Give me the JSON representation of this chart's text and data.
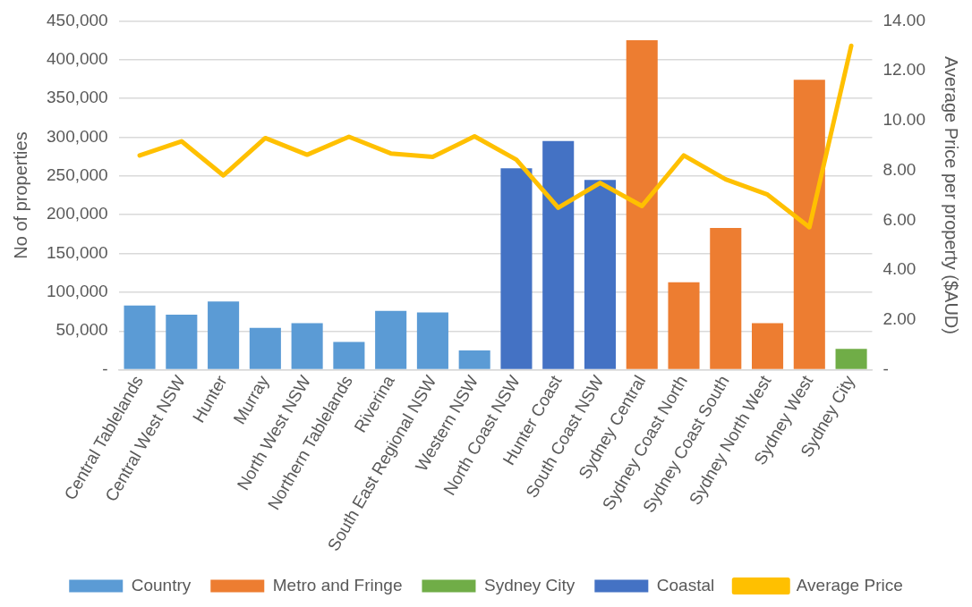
{
  "chart_data": {
    "type": "bar",
    "ylabel": "No of properties",
    "y2label": "Average Price per property ($AUD)",
    "categories": [
      "Central Tablelands",
      "Central West NSW",
      "Hunter",
      "Murray",
      "North West NSW",
      "Northern Tablelands",
      "Riverina",
      "South East Regional NSW",
      "Western NSW",
      "North Coast NSW",
      "Hunter Coast",
      "South Coast NSW",
      "Sydney Central",
      "Sydney Coast North",
      "Sydney Coast South",
      "Sydney North West",
      "Sydney West",
      "Sydney City"
    ],
    "series": [
      {
        "name": "Country",
        "color": "#5b9bd5",
        "values": [
          83000,
          71000,
          88000,
          54000,
          60000,
          36000,
          76000,
          74000,
          25000,
          null,
          null,
          null,
          null,
          null,
          null,
          null,
          null,
          null
        ]
      },
      {
        "name": "Metro and Fringe",
        "color": "#ed7d31",
        "values": [
          null,
          null,
          null,
          null,
          null,
          null,
          null,
          null,
          null,
          null,
          null,
          null,
          425000,
          113000,
          183000,
          60000,
          374000,
          null
        ]
      },
      {
        "name": "Sydney City",
        "color": "#70ad47",
        "values": [
          null,
          null,
          null,
          null,
          null,
          null,
          null,
          null,
          null,
          null,
          null,
          null,
          null,
          null,
          null,
          null,
          null,
          27000
        ]
      },
      {
        "name": "Coastal",
        "color": "#4472c4",
        "values": [
          null,
          null,
          null,
          null,
          null,
          null,
          null,
          null,
          null,
          260000,
          295000,
          245000,
          null,
          null,
          null,
          null,
          null,
          null
        ]
      },
      {
        "name": "Average Price",
        "type": "line",
        "axis": "y2",
        "color": "#ffc000",
        "values": [
          8.6,
          9.17,
          7.8,
          9.3,
          8.63,
          9.35,
          8.68,
          8.54,
          9.37,
          8.43,
          6.5,
          7.5,
          6.57,
          8.6,
          7.64,
          7.03,
          5.72,
          13.0
        ]
      }
    ],
    "ylim": [
      0,
      450000
    ],
    "yticks": [
      {
        "value": 0,
        "label": "-"
      },
      {
        "value": 50000,
        "label": "50,000"
      },
      {
        "value": 100000,
        "label": "100,000"
      },
      {
        "value": 150000,
        "label": "150,000"
      },
      {
        "value": 200000,
        "label": "200,000"
      },
      {
        "value": 250000,
        "label": "250,000"
      },
      {
        "value": 300000,
        "label": "300,000"
      },
      {
        "value": 350000,
        "label": "350,000"
      },
      {
        "value": 400000,
        "label": "400,000"
      },
      {
        "value": 450000,
        "label": "450,000"
      }
    ],
    "y2lim": [
      0,
      14
    ],
    "y2ticks": [
      {
        "value": 0,
        "label": "-"
      },
      {
        "value": 2,
        "label": "2.00"
      },
      {
        "value": 4,
        "label": "4.00"
      },
      {
        "value": 6,
        "label": "6.00"
      },
      {
        "value": 8,
        "label": "8.00"
      },
      {
        "value": 10,
        "label": "10.00"
      },
      {
        "value": 12,
        "label": "12.00"
      },
      {
        "value": 14,
        "label": "14.00"
      }
    ],
    "grid": "y",
    "legend": "bottom",
    "marker": "none",
    "line_style": "solid"
  }
}
